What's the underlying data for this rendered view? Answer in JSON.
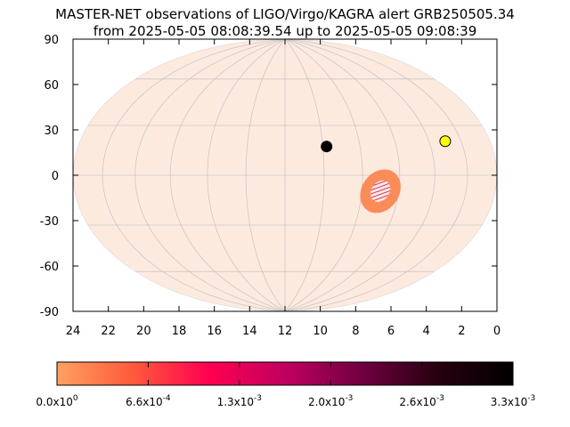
{
  "chart_data": {
    "type": "scatter",
    "projection": "hammer-aitoff",
    "title": [
      "MASTER-NET observations of LIGO/Virgo/KAGRA alert GRB250505.34",
      "from 2025-05-05 08:08:39.54 up to 2025-05-05 09:08:39"
    ],
    "xlabel": "",
    "ylabel": "",
    "x_axis": {
      "reversed": true,
      "xlim": [
        0,
        24
      ],
      "ticks": [
        "24",
        "22",
        "20",
        "18",
        "16",
        "14",
        "12",
        "10",
        "8",
        "6",
        "4",
        "2",
        "0"
      ]
    },
    "y_axis": {
      "ylim": [
        -90,
        90
      ],
      "ticks": [
        "90",
        "60",
        "30",
        "0",
        "-30",
        "-60",
        "-90"
      ]
    },
    "grid": true,
    "background_color": "#fdeadf",
    "grid_color": "#c8c8c8",
    "probability_region": {
      "center_ra_h": 7.0,
      "center_dec": -9,
      "outer_color": "#fa8c5a",
      "inner_color": "#fde6e6",
      "hatch_color": "#c8102e"
    },
    "markers": [
      {
        "ra_h": 9.8,
        "dec": 17,
        "color": "#000000"
      },
      {
        "ra_h": 3.0,
        "dec": 17,
        "color": "#ffff00"
      }
    ],
    "colorbar": {
      "colors": [
        "#ffa060",
        "#ff5a3c",
        "#ff0050",
        "#c00060",
        "#700040",
        "#280010",
        "#000000"
      ],
      "ticks": [
        {
          "mant": "0.0x10",
          "exp": "0"
        },
        {
          "mant": "6.6x10",
          "exp": "-4"
        },
        {
          "mant": "1.3x10",
          "exp": "-3"
        },
        {
          "mant": "2.0x10",
          "exp": "-3"
        },
        {
          "mant": "2.6x10",
          "exp": "-3"
        },
        {
          "mant": "3.3x10",
          "exp": "-3"
        }
      ]
    }
  }
}
